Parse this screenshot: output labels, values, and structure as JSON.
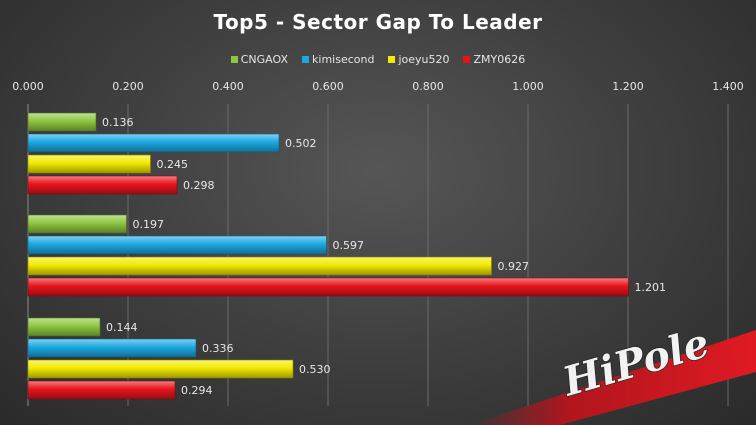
{
  "chart_data": {
    "type": "bar",
    "orientation": "horizontal",
    "title": "Top5 - Sector Gap To Leader",
    "categories": [
      "",
      "",
      ""
    ],
    "series": [
      {
        "name": "CNGAOX",
        "color": "#8dc63f",
        "values": [
          0.136,
          0.197,
          0.144
        ],
        "labels": [
          "0.136",
          "0.197",
          "0.144"
        ]
      },
      {
        "name": "kimisecond",
        "color": "#1ba9e1",
        "values": [
          0.502,
          0.597,
          0.336
        ],
        "labels": [
          "0.502",
          "0.597",
          "0.336"
        ]
      },
      {
        "name": "joeyu520",
        "color": "#f2ea00",
        "values": [
          0.245,
          0.927,
          0.53
        ],
        "labels": [
          "0.245",
          "0.927",
          "0.530"
        ]
      },
      {
        "name": "ZMY0626",
        "color": "#e8141b",
        "values": [
          0.298,
          1.201,
          0.294
        ],
        "labels": [
          "0.298",
          "1.201",
          "0.294"
        ]
      }
    ],
    "xlim": [
      0,
      1.4
    ],
    "xticks": [
      "0.000",
      "0.200",
      "0.400",
      "0.600",
      "0.800",
      "1.000",
      "1.200",
      "1.400"
    ],
    "axis_position": "top",
    "grid": true,
    "legend": "top-center"
  },
  "watermark": {
    "text": "HiPole"
  }
}
